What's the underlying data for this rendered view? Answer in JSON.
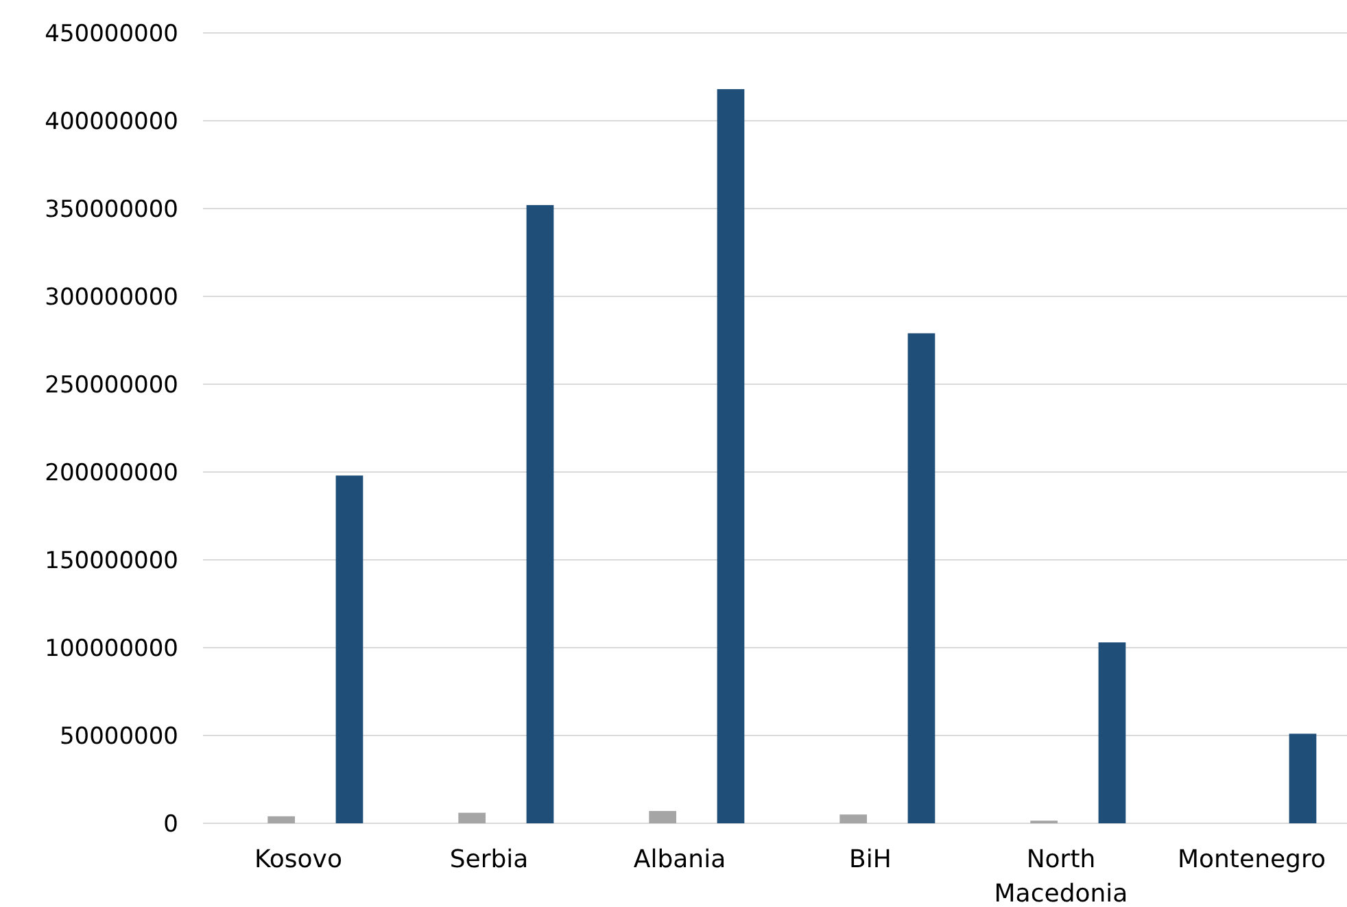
{
  "chart_data": {
    "type": "bar",
    "categories": [
      "Kosovo",
      "Serbia",
      "Albania",
      "BiH",
      "North Macedonia",
      "Montenegro"
    ],
    "series": [
      {
        "values": [
          null,
          null,
          null,
          null,
          null,
          null
        ]
      },
      {
        "color": "#a5a5a5",
        "values": [
          4000000,
          6000000,
          7000000,
          5000000,
          1500000,
          0
        ]
      },
      {
        "values": [
          null,
          null,
          null,
          null,
          null,
          null
        ]
      },
      {
        "color": "#1f4e79",
        "values": [
          198000000,
          352000000,
          418000000,
          279000000,
          103000000,
          51000000
        ]
      }
    ],
    "ylim": [
      0,
      450000000
    ],
    "yticks": [
      0,
      50000000,
      100000000,
      150000000,
      200000000,
      250000000,
      300000000,
      350000000,
      400000000,
      450000000
    ],
    "grid": "y"
  }
}
